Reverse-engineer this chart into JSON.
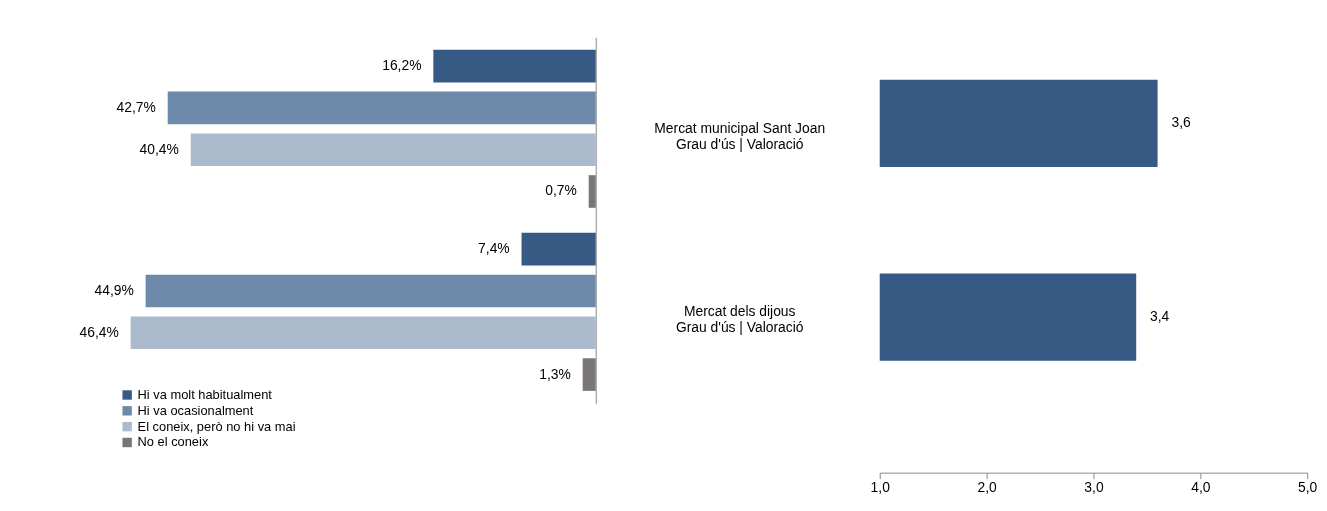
{
  "chart_data": [
    {
      "type": "bar",
      "orientation": "horizontal",
      "categories": [
        "Mercat municipal Sant Joan\nGrau d'ús | Valoració",
        "Mercat dels dijous\nGrau d'ús | Valoració"
      ],
      "legend": "bottom left",
      "series": [
        {
          "name": "Hi va molt habitualment",
          "color": "#375a84",
          "values": [
            16.2,
            7.4
          ],
          "value_labels": [
            "16,2%",
            "7,4%"
          ]
        },
        {
          "name": "Hi va ocasionalment",
          "color": "#6d8aab",
          "values": [
            42.7,
            44.9
          ],
          "value_labels": [
            "42,7%",
            "44,9%"
          ]
        },
        {
          "name": "El coneix, però no hi va mai",
          "color": "#abbacd",
          "values": [
            40.4,
            46.4
          ],
          "value_labels": [
            "40,4%",
            "46,4%"
          ]
        },
        {
          "name": "No el coneix",
          "color": "#7a7576",
          "values": [
            0.7,
            1.3
          ],
          "value_labels": [
            "0,7%",
            "1,3%"
          ]
        }
      ]
    },
    {
      "type": "bar",
      "orientation": "horizontal",
      "categories": [
        null,
        null
      ],
      "tick_labels": "x",
      "xlim": [
        1,
        5
      ],
      "xticks": [
        {
          "value": 1,
          "label": "1,0"
        },
        {
          "value": 2,
          "label": "2,0"
        },
        {
          "value": 3,
          "label": "3,0"
        },
        {
          "value": 4,
          "label": "4,0"
        },
        {
          "value": 5,
          "label": "5,0"
        }
      ],
      "series": [
        {
          "color": "#375a84",
          "values": [
            3.6,
            3.4
          ],
          "value_labels": [
            "3,6",
            "3,4"
          ]
        }
      ]
    }
  ]
}
